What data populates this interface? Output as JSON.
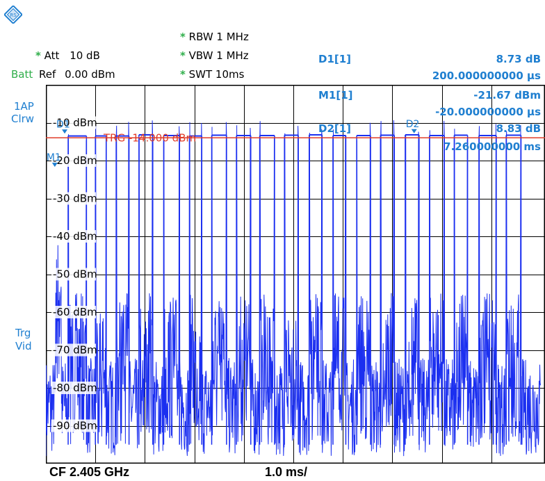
{
  "header": {
    "rbw_star": "*",
    "rbw": "RBW 1 MHz",
    "att_star": "*",
    "att_label": "Att",
    "att_value": "10 dB",
    "vbw_star": "*",
    "vbw": "VBW 1 MHz",
    "batt": "Batt",
    "ref_label": "Ref",
    "ref_value": "0.00 dBm",
    "swt_star": "*",
    "swt": "SWT 10ms"
  },
  "markers": {
    "d1_label": "D1[1]",
    "d1_value": "8.73 dB",
    "d1_time": "200.000000000 µs",
    "m1_label": "M1[1]",
    "m1_value": "-21.67 dBm",
    "m1_time": "-20.000000000 µs",
    "d2_label": "D2[1]",
    "d2_value": "8.83 dB",
    "d2_time": "7.260000000 ms"
  },
  "side": {
    "trace_line1": "1AP",
    "trace_line2": "Clrw",
    "trg_line1": "Trg",
    "trg_line2": "Vid"
  },
  "footer": {
    "cf": "CF 2.405 GHz",
    "span": "1.0 ms/"
  },
  "colors": {
    "trace": "#1b2ff0",
    "trigger": "#e03c28",
    "marker": "#1f7fd0",
    "grid": "#000000"
  },
  "chart_data": {
    "type": "line",
    "xlabel": "",
    "ylabel": "",
    "xlim": [
      -0.2,
      9.8
    ],
    "ylim": [
      -100,
      0
    ],
    "x_unit": "ms",
    "y_unit": "dBm",
    "grid": true,
    "y_ticks": [
      "-10 dBm",
      "-20 dBm",
      "-30 dBm",
      "-40 dBm",
      "-50 dBm",
      "-60 dBm",
      "-70 dBm",
      "-80 dBm",
      "-90 dBm"
    ],
    "trigger": {
      "label": "TRG -14.000 dBm",
      "level": -14
    },
    "marker_labels": [
      {
        "name": "D1",
        "x": 0.18,
        "y": -12.9
      },
      {
        "name": "M1",
        "x": -0.02,
        "y": -21.67
      },
      {
        "name": "D2",
        "x": 7.24,
        "y": -12.8
      }
    ],
    "bursts": [
      {
        "start": 0.25,
        "end": 0.62,
        "peak": -13.5
      },
      {
        "start": 0.8,
        "end": 1.02,
        "peak": -13.5
      },
      {
        "start": 1.22,
        "end": 1.48,
        "peak": -13.5
      },
      {
        "start": 1.68,
        "end": 1.96,
        "peak": -13.2
      },
      {
        "start": 2.18,
        "end": 2.5,
        "peak": -13.4
      },
      {
        "start": 2.7,
        "end": 2.95,
        "peak": -13.5
      },
      {
        "start": 3.15,
        "end": 3.45,
        "peak": -13.3
      },
      {
        "start": 3.65,
        "end": 3.94,
        "peak": -13.4
      },
      {
        "start": 4.12,
        "end": 4.42,
        "peak": -13.4
      },
      {
        "start": 4.62,
        "end": 4.9,
        "peak": -13.3
      },
      {
        "start": 5.12,
        "end": 5.38,
        "peak": -13.2
      },
      {
        "start": 5.6,
        "end": 5.86,
        "peak": -13.4
      },
      {
        "start": 6.08,
        "end": 6.36,
        "peak": -13.4
      },
      {
        "start": 6.56,
        "end": 6.84,
        "peak": -13.3
      },
      {
        "start": 7.06,
        "end": 7.34,
        "peak": -13.2
      },
      {
        "start": 7.55,
        "end": 7.85,
        "peak": -13.4
      },
      {
        "start": 8.05,
        "end": 8.32,
        "peak": -13.3
      },
      {
        "start": 8.55,
        "end": 8.9,
        "peak": -13.4
      },
      {
        "start": 9.1,
        "end": 9.4,
        "peak": -13.3
      }
    ],
    "noise_floor": -85,
    "initial_pulse": {
      "x": 0.05,
      "peak": -40
    }
  }
}
